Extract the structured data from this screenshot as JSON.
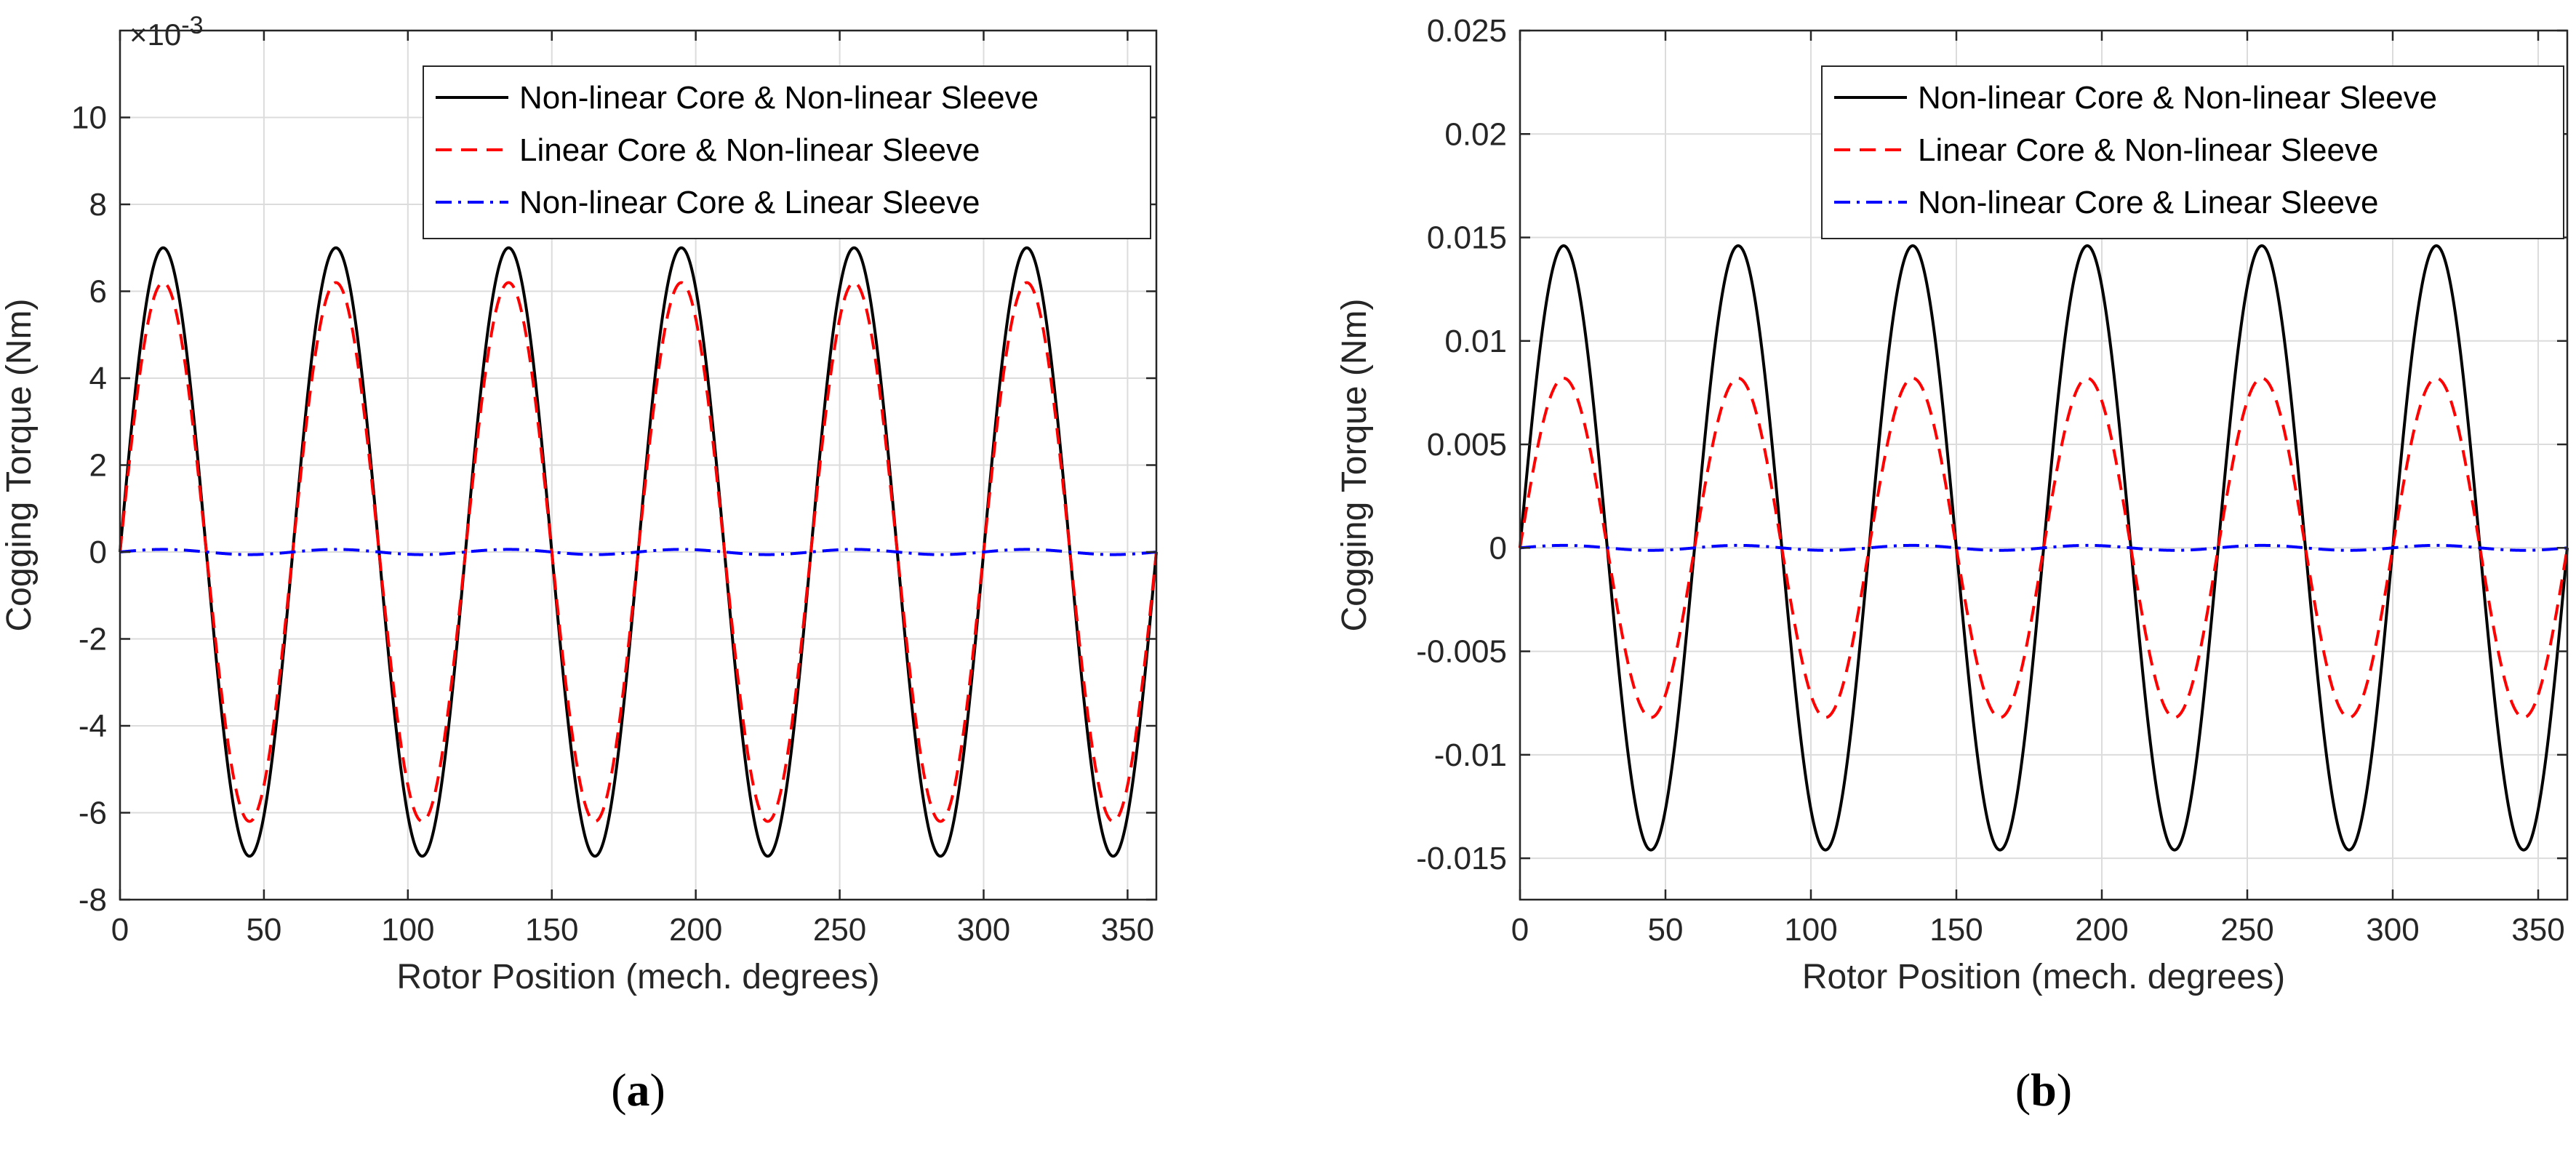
{
  "colors": {
    "series_black": "#000000",
    "series_red": "#ff0000",
    "series_blue": "#0000ff",
    "grid": "#dcdcdc",
    "axis": "#262626"
  },
  "chart_data": [
    {
      "type": "line",
      "panel": "a",
      "caption_open": "(",
      "caption_letter": "a",
      "caption_close": ")",
      "title": "",
      "xlabel": "Rotor Position (mech. degrees)",
      "ylabel": "Cogging Torque (Nm)",
      "y_exponent_base": "×10",
      "y_exponent_power": "-3",
      "xlim": [
        0,
        360
      ],
      "ylim": [
        -8,
        12
      ],
      "xticks": [
        0,
        50,
        100,
        150,
        200,
        250,
        300,
        350
      ],
      "xtick_labels": [
        "0",
        "50",
        "100",
        "150",
        "200",
        "250",
        "300",
        "350"
      ],
      "yticks": [
        -8,
        -6,
        -4,
        -2,
        0,
        2,
        4,
        6,
        8,
        10
      ],
      "ytick_labels": [
        "-8",
        "-6",
        "-4",
        "-2",
        "0",
        "2",
        "4",
        "6",
        "8",
        "10"
      ],
      "grid": true,
      "legend_position": "top-right",
      "waveform": "sine",
      "period_deg": 60,
      "series": [
        {
          "name": "Non-linear Core & Non-linear Sleeve",
          "style": "solid",
          "color": "#000000",
          "amplitude": 7.0
        },
        {
          "name": "Linear Core & Non-linear Sleeve",
          "style": "dashed",
          "color": "#ff0000",
          "amplitude": 6.2
        },
        {
          "name": "Non-linear Core & Linear Sleeve",
          "style": "dashdot",
          "color": "#0000ff",
          "amplitude": 0.06
        }
      ]
    },
    {
      "type": "line",
      "panel": "b",
      "caption_open": "(",
      "caption_letter": "b",
      "caption_close": ")",
      "title": "",
      "xlabel": "Rotor Position (mech. degrees)",
      "ylabel": "Cogging Torque (Nm)",
      "xlim": [
        0,
        360
      ],
      "ylim": [
        -0.017,
        0.025
      ],
      "xticks": [
        0,
        50,
        100,
        150,
        200,
        250,
        300,
        350
      ],
      "xtick_labels": [
        "0",
        "50",
        "100",
        "150",
        "200",
        "250",
        "300",
        "350"
      ],
      "yticks": [
        -0.015,
        -0.01,
        -0.005,
        0,
        0.005,
        0.01,
        0.015,
        0.02,
        0.025
      ],
      "ytick_labels": [
        "-0.015",
        "-0.01",
        "-0.005",
        "0",
        "0.005",
        "0.01",
        "0.015",
        "0.02",
        "0.025"
      ],
      "grid": true,
      "legend_position": "top-right",
      "waveform": "sine",
      "period_deg": 60,
      "series": [
        {
          "name": "Non-linear Core & Non-linear Sleeve",
          "style": "solid",
          "color": "#000000",
          "amplitude": 0.0146
        },
        {
          "name": "Linear Core & Non-linear Sleeve",
          "style": "dashed",
          "color": "#ff0000",
          "amplitude": 0.0082
        },
        {
          "name": "Non-linear Core & Linear Sleeve",
          "style": "dashdot",
          "color": "#0000ff",
          "amplitude": 0.00012
        }
      ]
    }
  ]
}
